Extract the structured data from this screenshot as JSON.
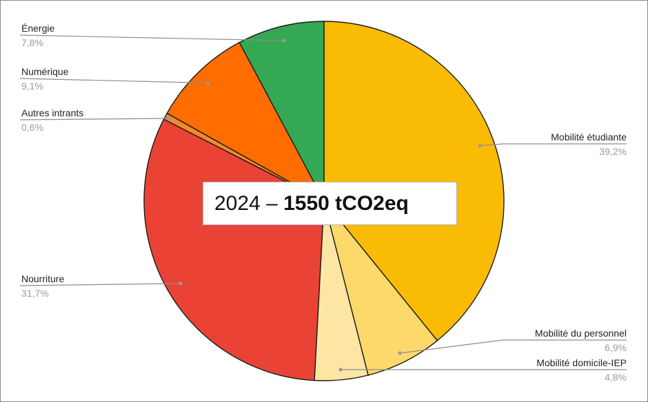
{
  "title": {
    "year": "2024",
    "separator": " – ",
    "total": "1550 tCO2eq"
  },
  "chart_data": {
    "type": "pie",
    "slices": [
      {
        "label": "Mobilité étudiante",
        "value": 39.2,
        "display": "39,2%",
        "color": "#FABB05"
      },
      {
        "label": "Mobilité du personnel",
        "value": 6.9,
        "display": "6,9%",
        "color": "#FDD86A"
      },
      {
        "label": "Mobilité domicile-IEP",
        "value": 4.8,
        "display": "4,8%",
        "color": "#FDE6A3"
      },
      {
        "label": "Nourriture",
        "value": 31.7,
        "display": "31,7%",
        "color": "#EA4336"
      },
      {
        "label": "Autres intrants",
        "value": 0.6,
        "display": "0,6%",
        "color": "#F18A2B"
      },
      {
        "label": "Numérique",
        "value": 9.1,
        "display": "9,1%",
        "color": "#FF6D01"
      },
      {
        "label": "Énergie",
        "value": 7.8,
        "display": "7,8%",
        "color": "#34A853"
      }
    ],
    "start_angle": "top",
    "direction": "clockwise",
    "legend": "none",
    "labels": "outside with leader lines"
  }
}
